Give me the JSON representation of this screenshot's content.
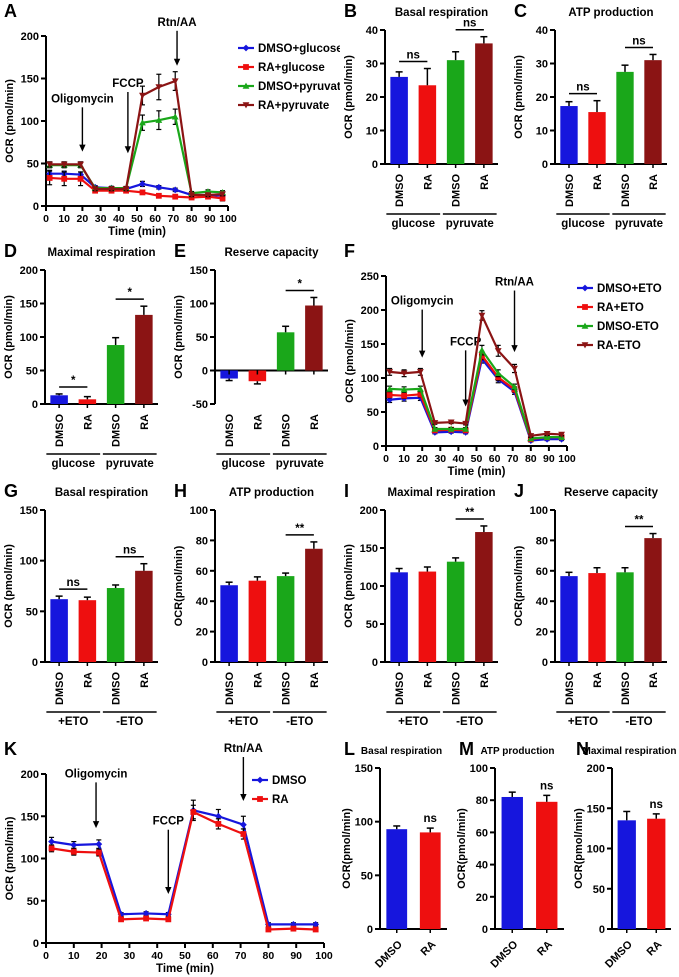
{
  "colors": {
    "blue": "#1616dd",
    "red": "#ee0f0f",
    "green": "#1aa71a",
    "darkred": "#8b1414",
    "black": "#000000"
  },
  "chart_data": [
    {
      "panel": "A",
      "type": "line",
      "title": "",
      "xlabel": "Time (min)",
      "ylabel": "OCR (pmol/min)",
      "xlim": [
        0,
        100
      ],
      "ylim": [
        0,
        200
      ],
      "xticks": [
        0,
        10,
        20,
        30,
        40,
        50,
        60,
        70,
        80,
        90,
        100
      ],
      "yticks": [
        0,
        50,
        100,
        150,
        200
      ],
      "x": [
        2,
        10,
        19,
        27,
        36,
        44,
        53,
        62,
        71,
        80,
        89,
        97
      ],
      "series": [
        {
          "name": "DMSO+glucose",
          "color": "blue",
          "marker": "diamond",
          "values": [
            38,
            38,
            37,
            22,
            21,
            20,
            26,
            22,
            19,
            13,
            13,
            12
          ],
          "errors": [
            4,
            3,
            3,
            2,
            2,
            2,
            3,
            2,
            2,
            2,
            2,
            2
          ]
        },
        {
          "name": "RA+glucose",
          "color": "red",
          "marker": "square",
          "values": [
            33,
            32,
            32,
            18,
            18,
            18,
            16,
            12,
            11,
            10,
            11,
            9
          ],
          "errors": [
            8,
            8,
            8,
            2,
            2,
            2,
            2,
            2,
            2,
            2,
            2,
            3
          ]
        },
        {
          "name": "DMSO+pyruvate",
          "color": "green",
          "marker": "triangle-up",
          "values": [
            48,
            48,
            48,
            21,
            21,
            21,
            98,
            101,
            105,
            15,
            17,
            16
          ],
          "errors": [
            3,
            3,
            3,
            2,
            2,
            2,
            9,
            11,
            9,
            2,
            2,
            2
          ]
        },
        {
          "name": "RA+pyruvate",
          "color": "darkred",
          "marker": "triangle-down",
          "values": [
            49,
            49,
            49,
            20,
            20,
            20,
            130,
            140,
            147,
            13,
            13,
            14
          ],
          "errors": [
            3,
            3,
            3,
            2,
            2,
            2,
            11,
            15,
            11,
            2,
            2,
            2
          ]
        }
      ],
      "annotations": [
        {
          "label": "Oligomycin",
          "x": 20,
          "text_y": 122,
          "tip_y": 64
        },
        {
          "label": "FCCP",
          "x": 45,
          "text_y": 140,
          "tip_y": 62
        },
        {
          "label": "Rtn/AA",
          "x": 72,
          "text_y": 212,
          "tip_y": 165
        }
      ],
      "legend_position": "right"
    },
    {
      "panel": "B",
      "type": "bar",
      "title": "Basal respiration",
      "ylabel": "OCR (pmol/min)",
      "ylim": [
        0,
        40
      ],
      "yticks": [
        0,
        10,
        20,
        30,
        40
      ],
      "categories": [
        "DMSO",
        "RA",
        "DMSO",
        "RA"
      ],
      "colors": [
        "blue",
        "red",
        "green",
        "darkred"
      ],
      "values": [
        26,
        23.5,
        31,
        36
      ],
      "errors": [
        1.5,
        5,
        2.5,
        2
      ],
      "sig": [
        {
          "from": 0,
          "to": 1,
          "label": "ns"
        },
        {
          "from": 2,
          "to": 3,
          "label": "ns"
        }
      ],
      "groups": [
        {
          "label": "glucose",
          "from": 0,
          "to": 1
        },
        {
          "label": "pyruvate",
          "from": 2,
          "to": 3
        }
      ],
      "label_rotation": 90
    },
    {
      "panel": "C",
      "type": "bar",
      "title": "ATP production",
      "ylabel": "OCR (pmol/min)",
      "ylim": [
        0,
        40
      ],
      "yticks": [
        0,
        10,
        20,
        30,
        40
      ],
      "categories": [
        "DMSO",
        "RA",
        "DMSO",
        "RA"
      ],
      "colors": [
        "blue",
        "red",
        "green",
        "darkred"
      ],
      "values": [
        17.3,
        15.5,
        27.5,
        31
      ],
      "errors": [
        1.3,
        3.4,
        2,
        1.7
      ],
      "sig": [
        {
          "from": 0,
          "to": 1,
          "label": "ns"
        },
        {
          "from": 2,
          "to": 3,
          "label": "ns"
        }
      ],
      "groups": [
        {
          "label": "glucose",
          "from": 0,
          "to": 1
        },
        {
          "label": "pyruvate",
          "from": 2,
          "to": 3
        }
      ],
      "label_rotation": 90
    },
    {
      "panel": "D",
      "type": "bar",
      "title": "Maximal respiration",
      "ylabel": "OCR (pmol/min)",
      "ylim": [
        0,
        200
      ],
      "yticks": [
        0,
        50,
        100,
        150,
        200
      ],
      "categories": [
        "DMSO",
        "RA",
        "DMSO",
        "RA"
      ],
      "colors": [
        "blue",
        "red",
        "green",
        "darkred"
      ],
      "values": [
        13,
        7,
        88,
        133
      ],
      "errors": [
        2,
        4,
        11,
        13
      ],
      "sig": [
        {
          "from": 0,
          "to": 1,
          "label": "*"
        },
        {
          "from": 2,
          "to": 3,
          "label": "*"
        }
      ],
      "groups": [
        {
          "label": "glucose",
          "from": 0,
          "to": 1
        },
        {
          "label": "pyruvate",
          "from": 2,
          "to": 3
        }
      ],
      "label_rotation": 90
    },
    {
      "panel": "E",
      "type": "bar",
      "title": "Reserve capacity",
      "ylabel": "OCR (pmol/min)",
      "ylim": [
        -50,
        150
      ],
      "yticks": [
        -50,
        0,
        50,
        100,
        150
      ],
      "categories": [
        "DMSO",
        "RA",
        "DMSO",
        "RA"
      ],
      "colors": [
        "blue",
        "red",
        "green",
        "darkred"
      ],
      "values": [
        -12,
        -16,
        57,
        97
      ],
      "errors": [
        3,
        4,
        9,
        12
      ],
      "sig": [
        {
          "from": 2,
          "to": 3,
          "label": "*"
        }
      ],
      "groups": [
        {
          "label": "glucose",
          "from": 0,
          "to": 1
        },
        {
          "label": "pyruvate",
          "from": 2,
          "to": 3
        }
      ],
      "label_rotation": 90
    },
    {
      "panel": "F",
      "type": "line",
      "title": "",
      "xlabel": "Time (min)",
      "ylabel": "OCR (pmol/min)",
      "xlim": [
        0,
        100
      ],
      "ylim": [
        0,
        250
      ],
      "xticks": [
        0,
        10,
        20,
        30,
        40,
        50,
        60,
        70,
        80,
        90,
        100
      ],
      "yticks": [
        0,
        50,
        100,
        150,
        200,
        250
      ],
      "x": [
        2,
        10,
        19,
        27,
        36,
        44,
        53,
        62,
        71,
        80,
        89,
        97
      ],
      "series": [
        {
          "name": "DMSO+ETO",
          "color": "blue",
          "marker": "diamond",
          "values": [
            68,
            70,
            71,
            20,
            21,
            20,
            128,
            98,
            80,
            8,
            10,
            10
          ],
          "errors": [
            4,
            4,
            4,
            2,
            2,
            2,
            6,
            5,
            4,
            2,
            2,
            2
          ]
        },
        {
          "name": "RA+ETO",
          "color": "red",
          "marker": "square",
          "values": [
            75,
            74,
            76,
            23,
            24,
            23,
            133,
            101,
            83,
            10,
            13,
            13
          ],
          "errors": [
            4,
            4,
            4,
            2,
            2,
            2,
            6,
            5,
            4,
            2,
            2,
            2
          ]
        },
        {
          "name": "DMSO-ETO",
          "color": "green",
          "marker": "triangle-up",
          "values": [
            84,
            83,
            84,
            25,
            25,
            25,
            141,
            107,
            87,
            11,
            13,
            13
          ],
          "errors": [
            4,
            4,
            4,
            2,
            2,
            2,
            7,
            5,
            4,
            2,
            2,
            2
          ]
        },
        {
          "name": "RA-ETO",
          "color": "darkred",
          "marker": "triangle-down",
          "values": [
            109,
            107,
            109,
            34,
            35,
            33,
            192,
            140,
            114,
            15,
            18,
            17
          ],
          "errors": [
            5,
            5,
            5,
            2,
            2,
            2,
            7,
            8,
            6,
            2,
            2,
            2
          ]
        }
      ],
      "annotations": [
        {
          "label": "Oligomycin",
          "x": 20,
          "text_y": 208,
          "tip_y": 130
        },
        {
          "label": "FCCP",
          "x": 44,
          "text_y": 148,
          "tip_y": 58
        },
        {
          "label": "Rtn/AA",
          "x": 71,
          "text_y": 236,
          "tip_y": 138
        }
      ],
      "legend_position": "right"
    },
    {
      "panel": "G",
      "type": "bar",
      "title": "Basal respiration",
      "ylabel": "OCR (pmol/min)",
      "ylim": [
        0,
        150
      ],
      "yticks": [
        0,
        50,
        100,
        150
      ],
      "categories": [
        "DMSO",
        "RA",
        "DMSO",
        "RA"
      ],
      "colors": [
        "blue",
        "red",
        "green",
        "darkred"
      ],
      "values": [
        62,
        61,
        73,
        90
      ],
      "errors": [
        3,
        3,
        3,
        7
      ],
      "sig": [
        {
          "from": 0,
          "to": 1,
          "label": "ns"
        },
        {
          "from": 2,
          "to": 3,
          "label": "ns"
        }
      ],
      "groups": [
        {
          "label": "+ETO",
          "from": 0,
          "to": 1
        },
        {
          "label": "-ETO",
          "from": 2,
          "to": 3
        }
      ],
      "label_rotation": 90
    },
    {
      "panel": "H",
      "type": "bar",
      "title": "ATP production",
      "ylabel": "OCR(pmol/min)",
      "ylim": [
        0,
        100
      ],
      "yticks": [
        0,
        20,
        40,
        60,
        80,
        100
      ],
      "categories": [
        "DMSO",
        "RA",
        "DMSO",
        "RA"
      ],
      "colors": [
        "blue",
        "red",
        "green",
        "darkred"
      ],
      "values": [
        50.5,
        53.5,
        56.5,
        74.5
      ],
      "errors": [
        2,
        2.5,
        2,
        4.5
      ],
      "sig": [
        {
          "from": 2,
          "to": 3,
          "label": "**"
        }
      ],
      "groups": [
        {
          "label": "+ETO",
          "from": 0,
          "to": 1
        },
        {
          "label": "-ETO",
          "from": 2,
          "to": 3
        }
      ],
      "label_rotation": 90
    },
    {
      "panel": "I",
      "type": "bar",
      "title": "Maximal respiration",
      "ylabel": "OCR (pmol/min)",
      "ylim": [
        0,
        200
      ],
      "yticks": [
        0,
        50,
        100,
        150,
        200
      ],
      "categories": [
        "DMSO",
        "RA",
        "DMSO",
        "RA"
      ],
      "colors": [
        "blue",
        "red",
        "green",
        "darkred"
      ],
      "values": [
        118,
        119,
        132,
        171
      ],
      "errors": [
        5,
        6,
        5,
        8
      ],
      "sig": [
        {
          "from": 2,
          "to": 3,
          "label": "**"
        }
      ],
      "groups": [
        {
          "label": "+ETO",
          "from": 0,
          "to": 1
        },
        {
          "label": "-ETO",
          "from": 2,
          "to": 3
        }
      ],
      "label_rotation": 90
    },
    {
      "panel": "J",
      "type": "bar",
      "title": "Reserve capacity",
      "ylabel": "OCR(pmol/min)",
      "ylim": [
        0,
        100
      ],
      "yticks": [
        0,
        20,
        40,
        60,
        80,
        100
      ],
      "categories": [
        "DMSO",
        "RA",
        "DMSO",
        "RA"
      ],
      "colors": [
        "blue",
        "red",
        "green",
        "darkred"
      ],
      "values": [
        56.5,
        58.5,
        59,
        81.5
      ],
      "errors": [
        2.5,
        3.5,
        3,
        3
      ],
      "sig": [
        {
          "from": 2,
          "to": 3,
          "label": "**"
        }
      ],
      "groups": [
        {
          "label": "+ETO",
          "from": 0,
          "to": 1
        },
        {
          "label": "-ETO",
          "from": 2,
          "to": 3
        }
      ],
      "label_rotation": 90
    },
    {
      "panel": "K",
      "type": "line",
      "title": "",
      "xlabel": "Time (min)",
      "ylabel": "OCR (pmol/min)",
      "xlim": [
        0,
        100
      ],
      "ylim": [
        0,
        200
      ],
      "xticks": [
        0,
        10,
        20,
        30,
        40,
        50,
        60,
        70,
        80,
        90,
        100
      ],
      "yticks": [
        0,
        50,
        100,
        150,
        200
      ],
      "x": [
        2,
        10,
        19,
        27,
        36,
        44,
        53,
        62,
        71,
        80,
        89,
        97
      ],
      "series": [
        {
          "name": "DMSO",
          "color": "blue",
          "marker": "diamond",
          "values": [
            120,
            116,
            117,
            34,
            35,
            34,
            157,
            150,
            140,
            22,
            22,
            22
          ],
          "errors": [
            5,
            4,
            5,
            2,
            2,
            2,
            12,
            8,
            10,
            2,
            2,
            2
          ]
        },
        {
          "name": "RA",
          "color": "red",
          "marker": "square",
          "values": [
            112,
            108,
            107,
            28,
            29,
            28,
            155,
            141,
            129,
            16,
            17,
            16
          ],
          "errors": [
            4,
            4,
            4,
            2,
            2,
            2,
            8,
            6,
            6,
            2,
            2,
            2
          ]
        }
      ],
      "annotations": [
        {
          "label": "Oligomycin",
          "x": 18,
          "text_y": 196,
          "tip_y": 136
        },
        {
          "label": "FCCP",
          "x": 44,
          "text_y": 140,
          "tip_y": 58
        },
        {
          "label": "Rtn/AA",
          "x": 71,
          "text_y": 226,
          "tip_y": 168
        }
      ],
      "legend_position": "inside"
    },
    {
      "panel": "L",
      "type": "bar",
      "title": "Basal respiration",
      "ylabel": "OCR(pmol/min)",
      "ylim": [
        0,
        150
      ],
      "yticks": [
        0,
        50,
        100,
        150
      ],
      "categories": [
        "DMSO",
        "RA"
      ],
      "colors": [
        "blue",
        "red"
      ],
      "values": [
        93,
        90
      ],
      "errors": [
        3,
        4
      ],
      "sig": [
        {
          "from": 1,
          "to": 1,
          "label": "ns"
        }
      ],
      "label_rotation": 45
    },
    {
      "panel": "M",
      "type": "bar",
      "title": "ATP production",
      "ylabel": "OCR(pmol/min)",
      "ylim": [
        0,
        100
      ],
      "yticks": [
        0,
        20,
        40,
        60,
        80,
        100
      ],
      "categories": [
        "DMSO",
        "RA"
      ],
      "colors": [
        "blue",
        "red"
      ],
      "values": [
        82,
        79
      ],
      "errors": [
        3,
        4
      ],
      "sig": [
        {
          "from": 1,
          "to": 1,
          "label": "ns"
        }
      ],
      "label_rotation": 45
    },
    {
      "panel": "N",
      "type": "bar",
      "title": "Maximal respiration",
      "ylabel": "OCR(pmol/min)",
      "ylim": [
        0,
        200
      ],
      "yticks": [
        0,
        50,
        100,
        150,
        200
      ],
      "categories": [
        "DMSO",
        "RA"
      ],
      "colors": [
        "blue",
        "red"
      ],
      "values": [
        135,
        137
      ],
      "errors": [
        11,
        6
      ],
      "sig": [
        {
          "from": 1,
          "to": 1,
          "label": "ns"
        }
      ],
      "label_rotation": 45
    }
  ]
}
